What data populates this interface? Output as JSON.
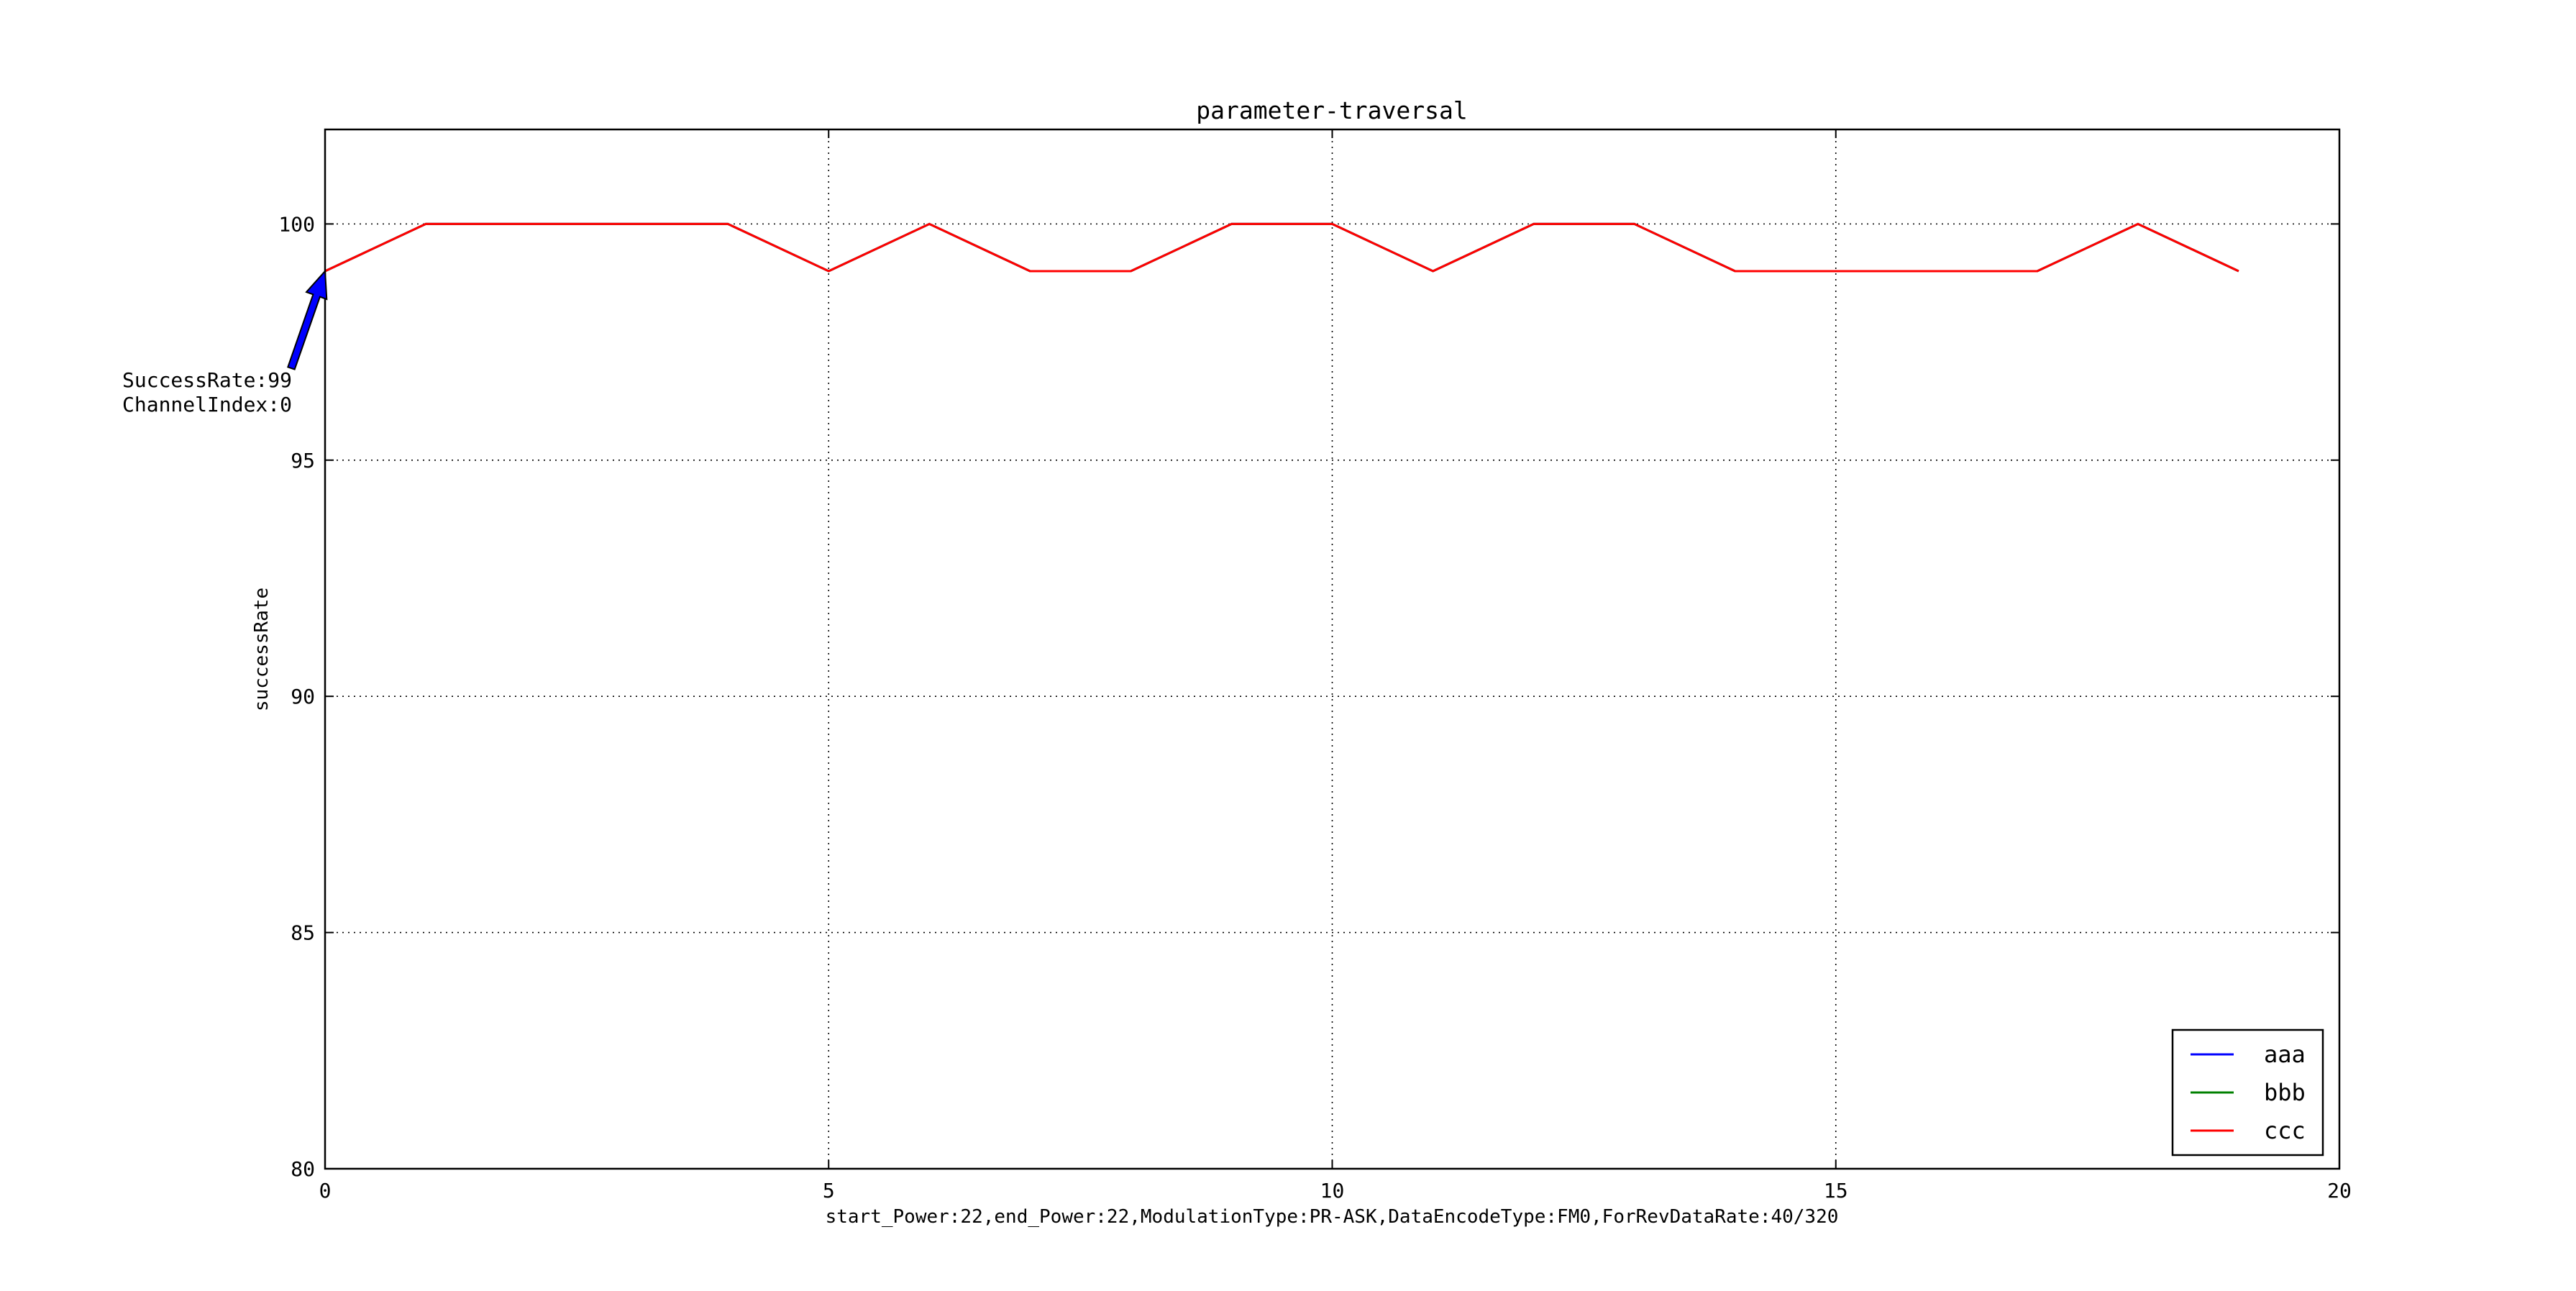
{
  "chart_data": {
    "type": "line",
    "title": "parameter-traversal",
    "xlabel": "start_Power:22,end_Power:22,ModulationType:PR-ASK,DataEncodeType:FM0,ForRevDataRate:40/320",
    "ylabel": "successRate",
    "xlim": [
      0,
      20
    ],
    "ylim": [
      80,
      102
    ],
    "xticks": [
      0,
      5,
      10,
      15,
      20
    ],
    "yticks": [
      80,
      85,
      90,
      95,
      100
    ],
    "grid": true,
    "legend_position": "lower-right",
    "x": [
      0,
      1,
      2,
      3,
      4,
      5,
      6,
      7,
      8,
      9,
      10,
      11,
      12,
      13,
      14,
      15,
      16,
      17,
      18,
      19
    ],
    "series": [
      {
        "name": "aaa",
        "color": "#0000ff",
        "values": [
          99,
          100,
          100,
          100,
          100,
          99,
          100,
          99,
          99,
          100,
          100,
          99,
          100,
          100,
          99,
          99,
          99,
          99,
          100,
          99
        ]
      },
      {
        "name": "bbb",
        "color": "#008000",
        "values": [
          99,
          100,
          100,
          100,
          100,
          99,
          100,
          99,
          99,
          100,
          100,
          99,
          100,
          100,
          99,
          99,
          99,
          99,
          100,
          99
        ]
      },
      {
        "name": "ccc",
        "color": "#ff0000",
        "values": [
          99,
          100,
          100,
          100,
          100,
          99,
          100,
          99,
          99,
          100,
          100,
          99,
          100,
          100,
          99,
          99,
          99,
          99,
          100,
          99
        ]
      }
    ],
    "annotation": {
      "point": [
        0,
        99
      ],
      "lines": [
        "SuccessRate:99",
        "ChannelIndex:0"
      ],
      "arrow_color": "#0000ff"
    }
  }
}
